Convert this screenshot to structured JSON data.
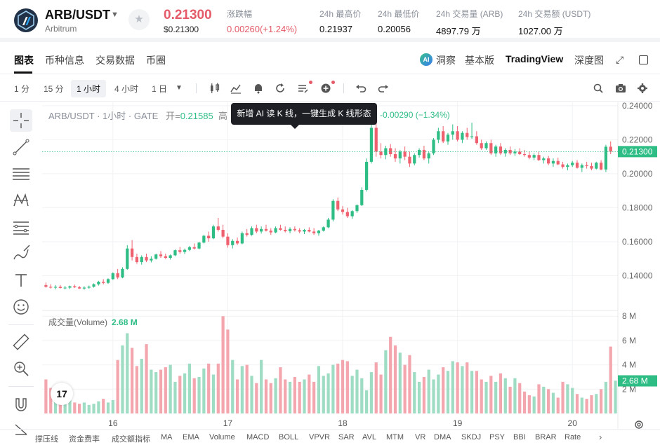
{
  "header": {
    "pair": "ARB/USDT",
    "pair_sub": "Arbitrum",
    "price": "0.21300",
    "price_usd": "$0.21300",
    "stats": [
      {
        "label": "涨跌幅",
        "value": "0.00260(+1.24%)"
      },
      {
        "label": "24h 最高价",
        "value": "0.21937"
      },
      {
        "label": "24h 最低价",
        "value": "0.20056"
      },
      {
        "label": "24h 交易量 (ARB)",
        "value": "4897.79 万"
      },
      {
        "label": "24h 交易额 (USDT)",
        "value": "1027.00 万"
      }
    ]
  },
  "tabs": {
    "left": [
      "图表",
      "币种信息",
      "交易数据",
      "币圈"
    ],
    "right": [
      "洞察",
      "基本版",
      "TradingView",
      "深度图"
    ],
    "dongcha_badge": "AI"
  },
  "toolbar": {
    "timeframes": [
      "1 分",
      "15 分",
      "1 小时",
      "4 小时",
      "1 日"
    ],
    "active_timeframe": "1 小时"
  },
  "chart": {
    "legend_title": "ARB/USDT · 1小时 · GATE",
    "legend_open_label": "开=",
    "legend_open_value": "0.21585",
    "legend_partial": "高",
    "legend_change": "-0.00290 (−1.34%)",
    "tooltip": "新增 AI 读 K 线，一键生成 K 线形态",
    "volume_label": "成交量(Volume)",
    "volume_value": "2.68 M",
    "tv_logo": "17",
    "price_badge": "0.21300",
    "volume_badge": "2.68 M"
  },
  "chart_data": {
    "type": "candlestick",
    "price_axis_ticks": [
      "0.24000",
      "0.22000",
      "0.20000",
      "0.18000",
      "0.16000",
      "0.14000"
    ],
    "price_axis_values": [
      0.24,
      0.22,
      0.2,
      0.18,
      0.16,
      0.14
    ],
    "price_ylim": [
      0.12,
      0.242
    ],
    "volume_axis_ticks": [
      "8 M",
      "6 M",
      "4 M",
      "2 M"
    ],
    "volume_axis_values": [
      8,
      6,
      4,
      2
    ],
    "volume_ylim": [
      0,
      8.3
    ],
    "x_ticks": [
      "16",
      "17",
      "18",
      "19",
      "20"
    ],
    "x_tick_index": [
      14,
      38,
      62,
      86,
      110
    ],
    "last_price": 0.213,
    "candles": [
      [
        0.1345,
        0.136,
        0.133,
        0.1335
      ],
      [
        0.1335,
        0.135,
        0.1325,
        0.133
      ],
      [
        0.133,
        0.1345,
        0.132,
        0.1335
      ],
      [
        0.1335,
        0.1345,
        0.1325,
        0.1328
      ],
      [
        0.1328,
        0.134,
        0.132,
        0.133
      ],
      [
        0.133,
        0.1342,
        0.1322,
        0.1338
      ],
      [
        0.1338,
        0.1348,
        0.1328,
        0.1332
      ],
      [
        0.1332,
        0.134,
        0.1322,
        0.1325
      ],
      [
        0.1325,
        0.1338,
        0.1318,
        0.133
      ],
      [
        0.133,
        0.1342,
        0.1324,
        0.1336
      ],
      [
        0.1336,
        0.1355,
        0.133,
        0.135
      ],
      [
        0.135,
        0.137,
        0.1342,
        0.1365
      ],
      [
        0.1365,
        0.138,
        0.135,
        0.1358
      ],
      [
        0.1358,
        0.1385,
        0.1352,
        0.138
      ],
      [
        0.138,
        0.142,
        0.1375,
        0.1415
      ],
      [
        0.1415,
        0.144,
        0.138,
        0.139
      ],
      [
        0.139,
        0.145,
        0.1385,
        0.144
      ],
      [
        0.144,
        0.158,
        0.1435,
        0.156
      ],
      [
        0.156,
        0.161,
        0.149,
        0.151
      ],
      [
        0.151,
        0.153,
        0.147,
        0.148
      ],
      [
        0.148,
        0.152,
        0.1465,
        0.151
      ],
      [
        0.151,
        0.153,
        0.148,
        0.149
      ],
      [
        0.149,
        0.1515,
        0.1478,
        0.15
      ],
      [
        0.15,
        0.153,
        0.1495,
        0.1525
      ],
      [
        0.1525,
        0.1545,
        0.1505,
        0.1515
      ],
      [
        0.1515,
        0.153,
        0.1498,
        0.1505
      ],
      [
        0.1505,
        0.1525,
        0.1495,
        0.152
      ],
      [
        0.152,
        0.1555,
        0.1515,
        0.155
      ],
      [
        0.155,
        0.157,
        0.153,
        0.154
      ],
      [
        0.154,
        0.156,
        0.1528,
        0.1552
      ],
      [
        0.1552,
        0.1575,
        0.1545,
        0.1568
      ],
      [
        0.1568,
        0.159,
        0.1555,
        0.156
      ],
      [
        0.156,
        0.16,
        0.1555,
        0.1595
      ],
      [
        0.1595,
        0.164,
        0.159,
        0.1635
      ],
      [
        0.1635,
        0.166,
        0.16,
        0.162
      ],
      [
        0.162,
        0.17,
        0.1615,
        0.169
      ],
      [
        0.169,
        0.174,
        0.166,
        0.167
      ],
      [
        0.167,
        0.17,
        0.162,
        0.163
      ],
      [
        0.163,
        0.165,
        0.1565,
        0.158
      ],
      [
        0.158,
        0.1615,
        0.156,
        0.1605
      ],
      [
        0.1605,
        0.1625,
        0.158,
        0.159
      ],
      [
        0.159,
        0.166,
        0.1585,
        0.165
      ],
      [
        0.165,
        0.1675,
        0.163,
        0.164
      ],
      [
        0.164,
        0.169,
        0.1635,
        0.168
      ],
      [
        0.168,
        0.17,
        0.165,
        0.166
      ],
      [
        0.166,
        0.169,
        0.1648,
        0.1675
      ],
      [
        0.1675,
        0.17,
        0.166,
        0.1665
      ],
      [
        0.1665,
        0.168,
        0.164,
        0.1655
      ],
      [
        0.1655,
        0.169,
        0.165,
        0.168
      ],
      [
        0.168,
        0.17,
        0.1665,
        0.167
      ],
      [
        0.167,
        0.169,
        0.1655,
        0.1662
      ],
      [
        0.1662,
        0.1685,
        0.165,
        0.1675
      ],
      [
        0.1675,
        0.169,
        0.166,
        0.1668
      ],
      [
        0.1668,
        0.168,
        0.165,
        0.166
      ],
      [
        0.166,
        0.1675,
        0.1645,
        0.167
      ],
      [
        0.167,
        0.1685,
        0.1655,
        0.166
      ],
      [
        0.166,
        0.168,
        0.164,
        0.165
      ],
      [
        0.165,
        0.167,
        0.1635,
        0.1665
      ],
      [
        0.1665,
        0.169,
        0.166,
        0.1685
      ],
      [
        0.1685,
        0.174,
        0.168,
        0.173
      ],
      [
        0.173,
        0.185,
        0.172,
        0.184
      ],
      [
        0.184,
        0.186,
        0.178,
        0.179
      ],
      [
        0.179,
        0.181,
        0.176,
        0.1775
      ],
      [
        0.1775,
        0.18,
        0.174,
        0.175
      ],
      [
        0.175,
        0.1785,
        0.1735,
        0.178
      ],
      [
        0.178,
        0.182,
        0.177,
        0.1815
      ],
      [
        0.1815,
        0.192,
        0.181,
        0.1905
      ],
      [
        0.1905,
        0.209,
        0.1895,
        0.207
      ],
      [
        0.207,
        0.23,
        0.206,
        0.227
      ],
      [
        0.227,
        0.23,
        0.21,
        0.213
      ],
      [
        0.213,
        0.218,
        0.209,
        0.211
      ],
      [
        0.211,
        0.2165,
        0.2085,
        0.215
      ],
      [
        0.215,
        0.2175,
        0.21,
        0.2115
      ],
      [
        0.2115,
        0.215,
        0.207,
        0.209
      ],
      [
        0.209,
        0.214,
        0.206,
        0.213
      ],
      [
        0.213,
        0.216,
        0.208,
        0.21
      ],
      [
        0.21,
        0.213,
        0.204,
        0.206
      ],
      [
        0.206,
        0.212,
        0.205,
        0.211
      ],
      [
        0.211,
        0.215,
        0.2095,
        0.214
      ],
      [
        0.214,
        0.2165,
        0.208,
        0.209
      ],
      [
        0.209,
        0.213,
        0.206,
        0.212
      ],
      [
        0.212,
        0.221,
        0.211,
        0.22
      ],
      [
        0.22,
        0.227,
        0.218,
        0.225
      ],
      [
        0.225,
        0.228,
        0.218,
        0.219
      ],
      [
        0.219,
        0.224,
        0.217,
        0.223
      ],
      [
        0.223,
        0.229,
        0.22,
        0.225
      ],
      [
        0.225,
        0.228,
        0.219,
        0.22
      ],
      [
        0.22,
        0.225,
        0.218,
        0.224
      ],
      [
        0.224,
        0.227,
        0.22,
        0.2215
      ],
      [
        0.2215,
        0.23,
        0.2205,
        0.222
      ],
      [
        0.222,
        0.225,
        0.217,
        0.218
      ],
      [
        0.218,
        0.22,
        0.214,
        0.215
      ],
      [
        0.215,
        0.219,
        0.214,
        0.218
      ],
      [
        0.218,
        0.22,
        0.211,
        0.212
      ],
      [
        0.212,
        0.217,
        0.21,
        0.216
      ],
      [
        0.216,
        0.218,
        0.211,
        0.212
      ],
      [
        0.212,
        0.215,
        0.21,
        0.214
      ],
      [
        0.214,
        0.216,
        0.211,
        0.212
      ],
      [
        0.212,
        0.2145,
        0.2105,
        0.213
      ],
      [
        0.213,
        0.215,
        0.211,
        0.2115
      ],
      [
        0.2115,
        0.214,
        0.21,
        0.211
      ],
      [
        0.211,
        0.213,
        0.2085,
        0.2095
      ],
      [
        0.2095,
        0.212,
        0.208,
        0.211
      ],
      [
        0.211,
        0.213,
        0.2075,
        0.208
      ],
      [
        0.208,
        0.21,
        0.206,
        0.209
      ],
      [
        0.209,
        0.2105,
        0.205,
        0.206
      ],
      [
        0.206,
        0.209,
        0.204,
        0.2075
      ],
      [
        0.2075,
        0.2095,
        0.205,
        0.2055
      ],
      [
        0.2055,
        0.207,
        0.203,
        0.204
      ],
      [
        0.204,
        0.206,
        0.202,
        0.205
      ],
      [
        0.205,
        0.2075,
        0.204,
        0.2065
      ],
      [
        0.2065,
        0.208,
        0.203,
        0.2035
      ],
      [
        0.2035,
        0.206,
        0.201,
        0.205
      ],
      [
        0.205,
        0.207,
        0.203,
        0.2045
      ],
      [
        0.2045,
        0.2065,
        0.202,
        0.203
      ],
      [
        0.203,
        0.207,
        0.2025,
        0.2065
      ],
      [
        0.2065,
        0.208,
        0.202,
        0.2025
      ],
      [
        0.2025,
        0.217,
        0.201,
        0.2159
      ],
      [
        0.2159,
        0.219,
        0.2115,
        0.213
      ]
    ],
    "volume": [
      2.8,
      2.1,
      1.5,
      1.3,
      1.1,
      1.2,
      0.9,
      0.8,
      0.9,
      0.7,
      0.8,
      1.0,
      1.2,
      0.9,
      1.1,
      4.4,
      5.6,
      6.6,
      5.4,
      3.9,
      4.5,
      5.7,
      3.6,
      3.4,
      3.6,
      3.8,
      4.0,
      2.6,
      3.1,
      3.3,
      4.1,
      2.9,
      3.0,
      3.7,
      4.1,
      3.2,
      4.1,
      8.0,
      6.9,
      4.4,
      2.8,
      3.9,
      4.0,
      3.1,
      2.5,
      4.4,
      2.8,
      2.5,
      2.9,
      3.8,
      2.8,
      2.6,
      3.0,
      2.6,
      2.8,
      3.2,
      2.6,
      3.9,
      3.1,
      3.3,
      4.0,
      4.1,
      4.4,
      4.3,
      3.1,
      3.6,
      2.9,
      1.9,
      3.4,
      4.2,
      3.2,
      5.2,
      6.3,
      5.6,
      5.0,
      4.0,
      4.8,
      3.4,
      2.6,
      3.0,
      3.6,
      2.8,
      3.2,
      3.8,
      3.5,
      4.3,
      4.2,
      3.9,
      4.2,
      3.5,
      3.5,
      2.8,
      2.6,
      3.1,
      2.6,
      3.3,
      2.9,
      2.2,
      2.9,
      2.5,
      1.8,
      1.5,
      1.4,
      2.4,
      2.2,
      2.0,
      1.7,
      1.3,
      2.6,
      2.4,
      2.1,
      1.6,
      1.3,
      1.2,
      1.5,
      1.6,
      2.0,
      2.6,
      5.5,
      2.7
    ]
  },
  "indicators": [
    "撑压线",
    "资金费率",
    "成交额指标",
    "MA",
    "EMA",
    "Volume",
    "MACD",
    "BOLL",
    "VPVR",
    "SAR",
    "AVL",
    "MTM",
    "VR",
    "DMA",
    "SKDJ",
    "PSY",
    "BBI",
    "BRAR",
    "Rate"
  ],
  "colors": {
    "up": "#2ebd85",
    "down": "#f0616f",
    "vol_up": "#9fdcc4",
    "vol_down": "#f4a6ae",
    "grid": "#f1f2f4"
  }
}
